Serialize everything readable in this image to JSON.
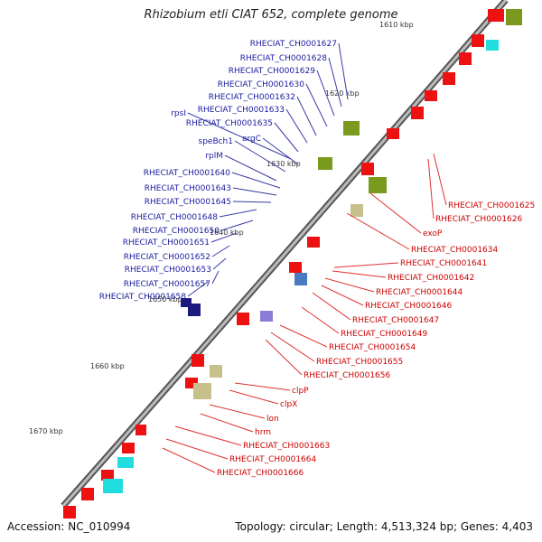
{
  "title": "Rhizobium etli CIAT 652, complete genome",
  "footer": {
    "accession": "Accession: NC_010994",
    "summary": "Topology: circular; Length: 4,513,324 bp; Genes: 4,403"
  },
  "ticks": [
    "1610 kbp",
    "1620 kbp",
    "1630 kbp",
    "1640 kbp",
    "1650 kbp",
    "1660 kbp",
    "1670 kbp"
  ],
  "labels_left": [
    "RHECIAT_CH0001627",
    "RHECIAT_CH0001628",
    "RHECIAT_CH0001629",
    "RHECIAT_CH0001630",
    "RHECIAT_CH0001632",
    "RHECIAT_CH0001633",
    "rpsI",
    "RHECIAT_CH0001635",
    "speBch1",
    "argC",
    "rplM",
    "RHECIAT_CH0001640",
    "RHECIAT_CH0001643",
    "RHECIAT_CH0001645",
    "RHECIAT_CH0001648",
    "RHECIAT_CH0001650",
    "RHECIAT_CH0001651",
    "RHECIAT_CH0001652",
    "RHECIAT_CH0001653",
    "RHECIAT_CH0001657",
    "RHECIAT_CH0001658"
  ],
  "labels_right": [
    "RHECIAT_CH0001625",
    "RHECIAT_CH0001626",
    "exoP",
    "RHECIAT_CH0001634",
    "RHECIAT_CH0001641",
    "RHECIAT_CH0001642",
    "RHECIAT_CH0001644",
    "RHECIAT_CH0001646",
    "RHECIAT_CH0001647",
    "RHECIAT_CH0001649",
    "RHECIAT_CH0001654",
    "RHECIAT_CH0001655",
    "RHECIAT_CH0001656",
    "clpP",
    "clpX",
    "lon",
    "hrm",
    "RHECIAT_CH0001663",
    "RHECIAT_CH0001664",
    "RHECIAT_CH0001666"
  ],
  "colors": {
    "left_label": "#1a1aa0",
    "right_label": "#cc0000",
    "backbone": "#888888",
    "red_feature": "#ee1111",
    "blue_feature": "#1111dd",
    "olive_feature": "#7a9a1e",
    "cyan_feature": "#22dddd",
    "tan_feature": "#c8c08a",
    "green_mark": "#2a9a2a"
  }
}
